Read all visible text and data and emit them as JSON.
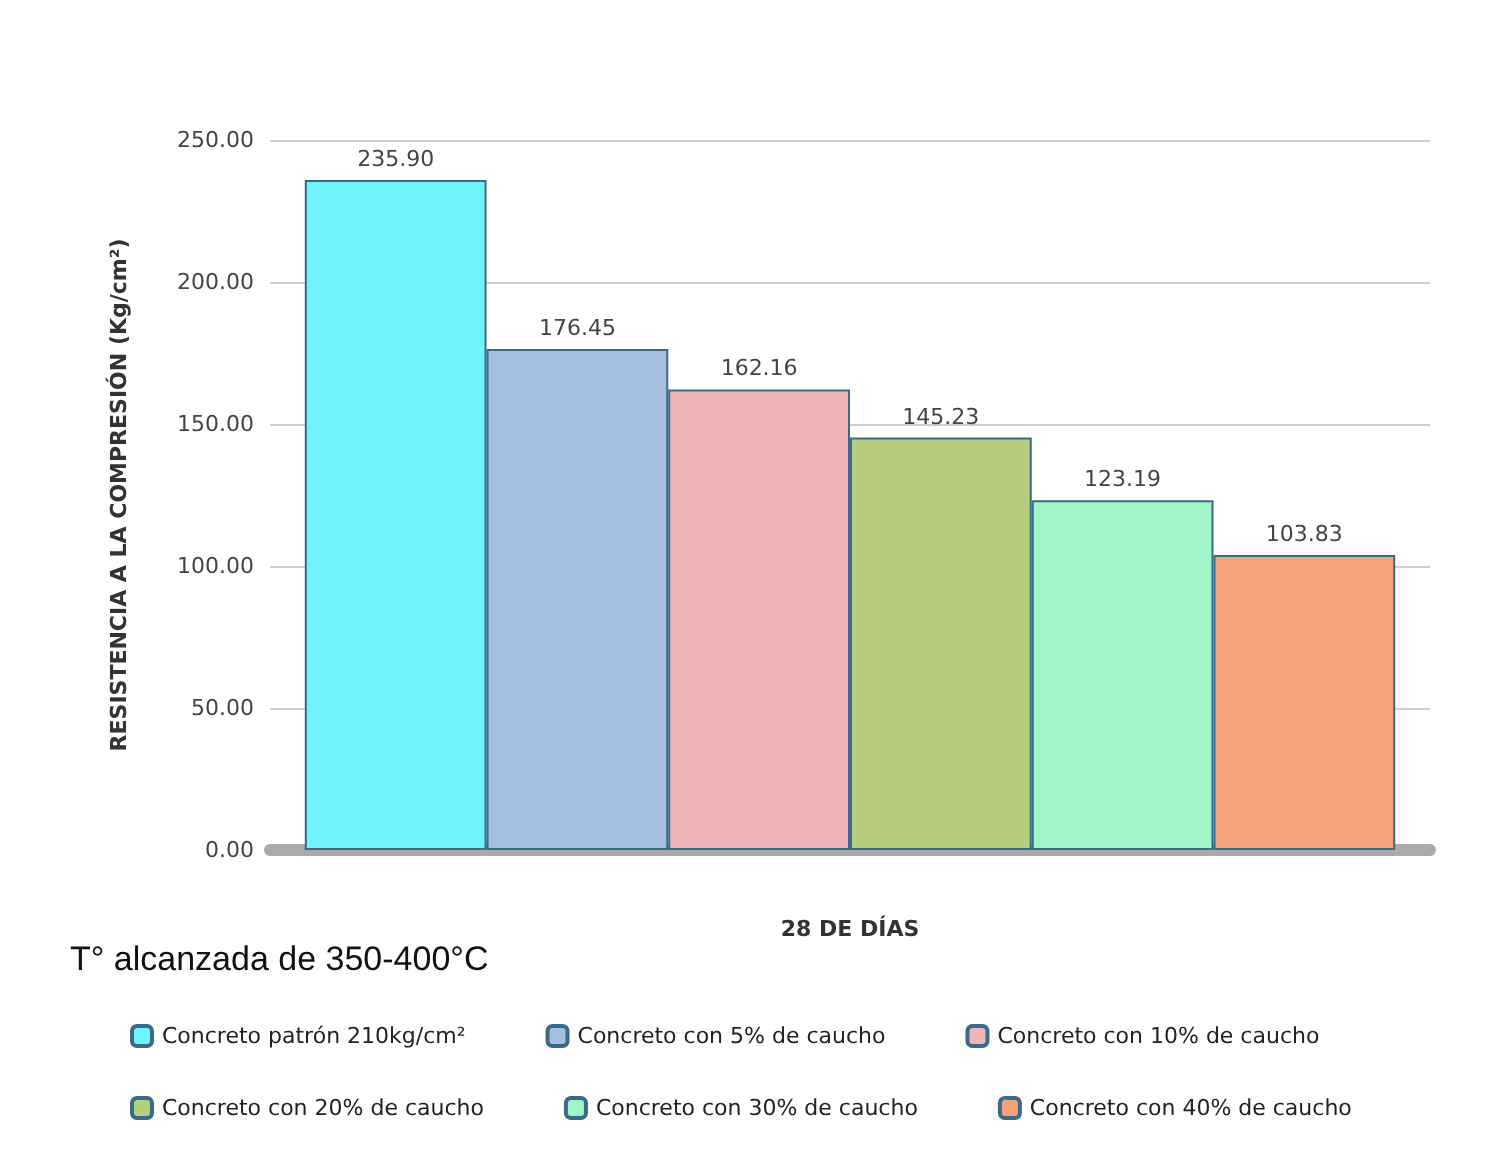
{
  "chart_data": {
    "type": "bar",
    "subtitle": "T° alcanzada de 350-400°C",
    "ylabel": "RESISTENCIA A LA COMPRESIÓN (Kg/cm²)",
    "xlabel": "28 DE DÍAS",
    "categories": [
      null
    ],
    "series": [
      {
        "name": "Concreto patrón 210kg/cm²",
        "color": "#70f4fa",
        "values": [
          235.9
        ],
        "value_labels": [
          "235.90"
        ]
      },
      {
        "name": "Concreto con 5% de caucho",
        "color": "#a6bedf",
        "values": [
          176.45
        ],
        "value_labels": [
          "176.45"
        ]
      },
      {
        "name": "Concreto con 10% de caucho",
        "color": "#efb6b8",
        "values": [
          162.16
        ],
        "value_labels": [
          "162.16"
        ]
      },
      {
        "name": "Concreto con 20% de caucho",
        "color": "#b5cd7c",
        "values": [
          145.23
        ],
        "value_labels": [
          "145.23"
        ]
      },
      {
        "name": "Concreto con 30% de caucho",
        "color": "#a0f5c9",
        "values": [
          123.19
        ],
        "value_labels": [
          "123.19"
        ]
      },
      {
        "name": "Concreto con 40% de caucho",
        "color": "#f4a27a",
        "values": [
          103.83
        ],
        "value_labels": [
          "103.83"
        ]
      }
    ],
    "ylim": [
      0,
      250
    ],
    "yticks": [
      {
        "value": 0,
        "label": "0.00"
      },
      {
        "value": 50,
        "label": "50.00"
      },
      {
        "value": 100,
        "label": "100.00"
      },
      {
        "value": 150,
        "label": "150.00"
      },
      {
        "value": 200,
        "label": "200.00"
      },
      {
        "value": 250,
        "label": "250.00"
      }
    ],
    "grid": "y",
    "legend": "bottom"
  }
}
